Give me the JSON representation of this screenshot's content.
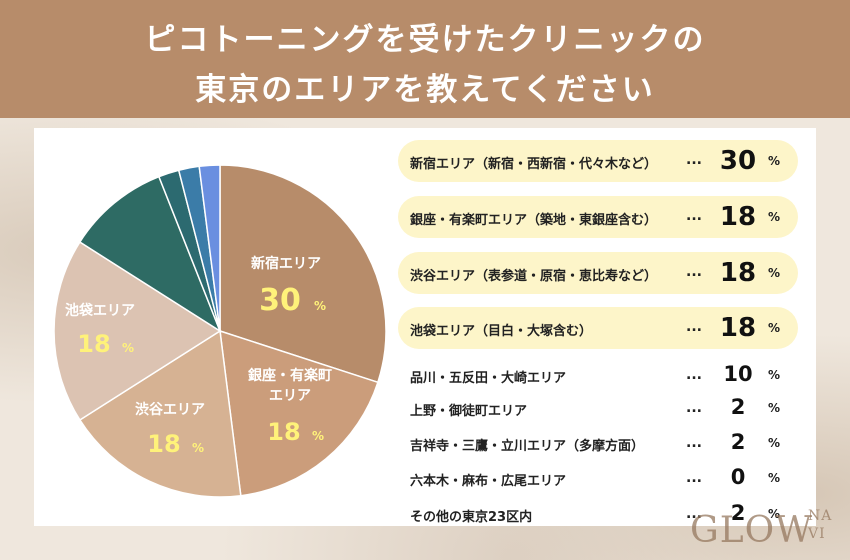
{
  "title": {
    "line1": "ピコトーニングを受けたクリニックの",
    "line2": "東京のエリアを教えてください"
  },
  "colors": {
    "header": "#b78c6a",
    "highlight": "#fdf5c9",
    "pie_label_value": "#fff27a"
  },
  "chart_data": {
    "type": "pie",
    "slices": [
      {
        "label": "新宿エリア",
        "value": 30,
        "color": "#b78c6a"
      },
      {
        "label": "銀座・有楽町エリア",
        "value": 18,
        "color": "#cb9d7b"
      },
      {
        "label": "渋谷エリア",
        "value": 18,
        "color": "#d6b293"
      },
      {
        "label": "池袋エリア",
        "value": 18,
        "color": "#dcc3b2"
      },
      {
        "label": "品川・五反田・大崎エリア",
        "value": 10,
        "color": "#2e6b64"
      },
      {
        "label": "上野・御徒町エリア",
        "value": 2,
        "color": "#2c6a70"
      },
      {
        "label": "吉祥寺・三鷹・立川エリア（多摩方面）",
        "value": 2,
        "color": "#3b7ca8"
      },
      {
        "label": "六本木・麻布・広尾エリア",
        "value": 0,
        "color": "#4f8ed0"
      },
      {
        "label": "その他の東京23区内",
        "value": 2,
        "color": "#6a8fe0"
      }
    ],
    "slice_labels": [
      {
        "name": "新宿エリア",
        "value": "30",
        "unit": "%"
      },
      {
        "name": "銀座・有楽町\nエリア",
        "value": "18",
        "unit": "%"
      },
      {
        "name": "渋谷エリア",
        "value": "18",
        "unit": "%"
      },
      {
        "name": "池袋エリア",
        "value": "18",
        "unit": "%"
      }
    ]
  },
  "legend": {
    "dots": "...",
    "unit": "%",
    "rows": [
      {
        "label": "新宿エリア（新宿・西新宿・代々木など）",
        "value": "30",
        "highlight": true
      },
      {
        "label": "銀座・有楽町エリア（築地・東銀座含む）",
        "value": "18",
        "highlight": true
      },
      {
        "label": "渋谷エリア（表参道・原宿・恵比寿など）",
        "value": "18",
        "highlight": true
      },
      {
        "label": "池袋エリア（目白・大塚含む）",
        "value": "18",
        "highlight": true
      },
      {
        "label": "品川・五反田・大崎エリア",
        "value": "10",
        "highlight": false
      },
      {
        "label": "上野・御徒町エリア",
        "value": "2",
        "highlight": false
      },
      {
        "label": "吉祥寺・三鷹・立川エリア（多摩方面）",
        "value": "2",
        "highlight": false
      },
      {
        "label": "六本木・麻布・広尾エリア",
        "value": "0",
        "highlight": false
      },
      {
        "label": "その他の東京23区内",
        "value": "2",
        "highlight": false
      }
    ]
  },
  "logo": {
    "main": "GLOW",
    "sup": "NA",
    "sub": "VI"
  }
}
